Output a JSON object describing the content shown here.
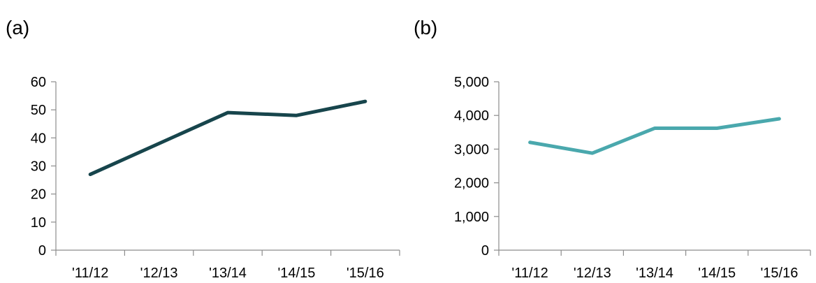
{
  "chart_data": [
    {
      "panel_label": "(a)",
      "type": "line",
      "categories": [
        "'11/12",
        "'12/13",
        "'13/14",
        "'14/15",
        "'15/16"
      ],
      "series": [
        {
          "values": [
            27,
            38,
            49,
            48,
            53
          ],
          "color": "#17454c"
        }
      ],
      "ylim": [
        0,
        60
      ],
      "yticks": [
        0,
        10,
        20,
        30,
        40,
        50,
        60
      ],
      "ytick_labels": [
        "0",
        "10",
        "20",
        "30",
        "40",
        "50",
        "60"
      ],
      "grid": false
    },
    {
      "panel_label": "(b)",
      "type": "line",
      "categories": [
        "'11/12",
        "'12/13",
        "'13/14",
        "'14/15",
        "'15/16"
      ],
      "series": [
        {
          "values": [
            3200,
            2880,
            3620,
            3620,
            3900
          ],
          "color": "#4aa8ad"
        }
      ],
      "ylim": [
        0,
        5000
      ],
      "yticks": [
        0,
        1000,
        2000,
        3000,
        4000,
        5000
      ],
      "ytick_labels": [
        "0",
        "1,000",
        "2,000",
        "3,000",
        "4,000",
        "5,000"
      ],
      "grid": false
    }
  ]
}
